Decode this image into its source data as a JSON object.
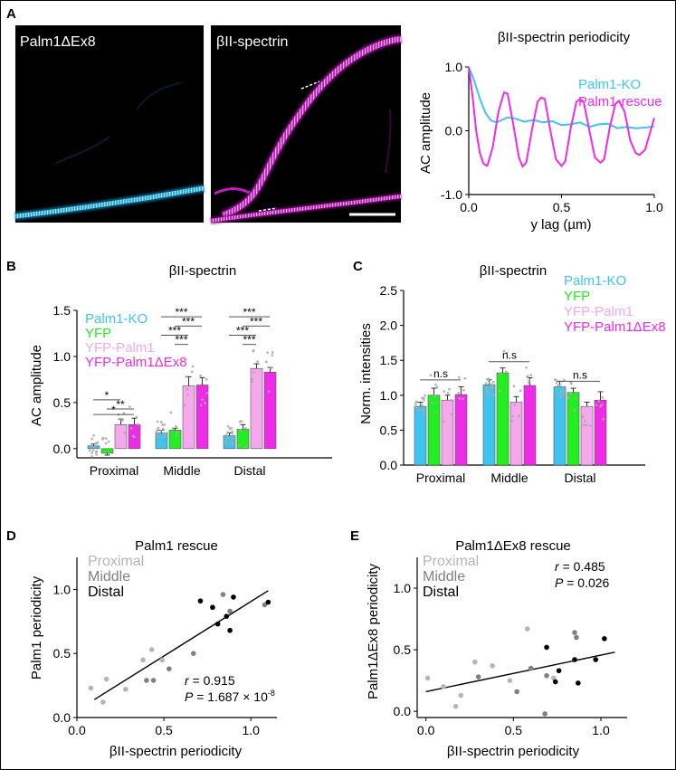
{
  "panels": {
    "A": {
      "letter": "A",
      "img_left_label": "Palm1ΔEx8",
      "img_right_label": "βII-spectrin",
      "colors": {
        "cyan": "#3ec4ee",
        "magenta": "#ee2ce8"
      }
    },
    "B": {
      "letter": "B"
    },
    "C": {
      "letter": "C"
    },
    "D": {
      "letter": "D"
    },
    "E": {
      "letter": "E"
    }
  },
  "chart_data": [
    {
      "id": "A",
      "type": "line",
      "title": "βII-spectrin periodicity",
      "xlabel": "y lag (µm)",
      "ylabel": "AC amplitude",
      "xlim": [
        0,
        1.0
      ],
      "ylim": [
        -1.0,
        1.0
      ],
      "xticks": [
        "0.0",
        "0.5",
        "1.0"
      ],
      "yticks": [
        "1.0",
        "0.0",
        "-1.0"
      ],
      "legend_position": "top-right",
      "series": [
        {
          "name": "Palm1-KO",
          "color": "#3ec4ee",
          "x": [
            0,
            0.03,
            0.06,
            0.09,
            0.12,
            0.15,
            0.18,
            0.21,
            0.25,
            0.3,
            0.35,
            0.4,
            0.45,
            0.5,
            0.55,
            0.6,
            0.65,
            0.7,
            0.75,
            0.8,
            0.85,
            0.9,
            0.95,
            1.0
          ],
          "y": [
            1.0,
            0.78,
            0.5,
            0.28,
            0.16,
            0.13,
            0.17,
            0.21,
            0.19,
            0.14,
            0.17,
            0.13,
            0.15,
            0.09,
            0.1,
            0.13,
            0.06,
            0.1,
            0.11,
            0.04,
            0.06,
            0.04,
            0.05,
            0.07
          ]
        },
        {
          "name": "Palm1-rescue",
          "color": "#ee2ce8",
          "x": [
            0,
            0.02,
            0.04,
            0.06,
            0.08,
            0.1,
            0.13,
            0.16,
            0.19,
            0.21,
            0.24,
            0.27,
            0.29,
            0.31,
            0.34,
            0.37,
            0.39,
            0.41,
            0.44,
            0.47,
            0.5,
            0.52,
            0.55,
            0.58,
            0.6,
            0.62,
            0.65,
            0.68,
            0.71,
            0.73,
            0.76,
            0.79,
            0.81,
            0.84,
            0.87,
            0.9,
            0.92,
            0.95,
            0.98,
            1.0
          ],
          "y": [
            1.0,
            0.55,
            0.0,
            -0.35,
            -0.52,
            -0.55,
            -0.25,
            0.3,
            0.6,
            0.58,
            0.1,
            -0.42,
            -0.56,
            -0.5,
            0.0,
            0.45,
            0.52,
            0.5,
            0.0,
            -0.45,
            -0.55,
            -0.48,
            0.05,
            0.45,
            0.5,
            0.45,
            0.0,
            -0.42,
            -0.5,
            -0.45,
            0.05,
            0.42,
            0.47,
            0.3,
            -0.15,
            -0.35,
            -0.38,
            -0.3,
            0.0,
            0.2
          ]
        }
      ]
    },
    {
      "id": "B",
      "type": "bar",
      "title": "βII-spectrin",
      "ylabel": "AC amplitude",
      "xlabel": "",
      "ylim": [
        -0.1,
        1.5
      ],
      "yticks": [
        "0.0",
        "0.5",
        "1.0",
        "1.5"
      ],
      "categories": [
        "Proximal",
        "Middle",
        "Distal"
      ],
      "legend_position": "top-left",
      "series": [
        {
          "name": "Palm1-KO",
          "color": "#3ec4ee",
          "values": [
            0.03,
            0.17,
            0.14
          ],
          "err": [
            0.02,
            0.03,
            0.03
          ]
        },
        {
          "name": "YFP",
          "color": "#22ee22",
          "values": [
            -0.05,
            0.2,
            0.21
          ],
          "err": [
            0.02,
            0.02,
            0.05
          ]
        },
        {
          "name": "YFP-Palm1",
          "color": "#f5a8ec",
          "values": [
            0.26,
            0.68,
            0.87
          ],
          "err": [
            0.06,
            0.1,
            0.05
          ]
        },
        {
          "name": "YFP-Palm1ΔEx8",
          "color": "#ee2ce8",
          "values": [
            0.26,
            0.69,
            0.83
          ],
          "err": [
            0.07,
            0.08,
            0.05
          ]
        }
      ],
      "significance": [
        {
          "group": "Proximal",
          "labels": [
            "*",
            "**",
            "*"
          ]
        },
        {
          "group": "Middle",
          "labels": [
            "***",
            "***",
            "***",
            "***"
          ]
        },
        {
          "group": "Distal",
          "labels": [
            "***",
            "***",
            "***",
            "***"
          ]
        }
      ]
    },
    {
      "id": "C",
      "type": "bar",
      "title": "βII-spectrin",
      "ylabel": "Norm. intensities",
      "xlabel": "",
      "ylim": [
        0.0,
        2.5
      ],
      "yticks": [
        "0.0",
        "0.5",
        "1.0",
        "1.5",
        "2.0",
        "2.5"
      ],
      "categories": [
        "Proximal",
        "Middle",
        "Distal"
      ],
      "legend_position": "top-right",
      "series": [
        {
          "name": "Palm1-KO",
          "color": "#3ec4ee",
          "values": [
            0.84,
            1.15,
            1.12
          ],
          "err": [
            0.06,
            0.07,
            0.08
          ]
        },
        {
          "name": "YFP",
          "color": "#22ee22",
          "values": [
            1.0,
            1.32,
            1.04
          ],
          "err": [
            0.1,
            0.07,
            0.06
          ]
        },
        {
          "name": "YFP-Palm1",
          "color": "#f5a8ec",
          "values": [
            0.93,
            0.9,
            0.84
          ],
          "err": [
            0.07,
            0.08,
            0.06
          ]
        },
        {
          "name": "YFP-Palm1ΔEx8",
          "color": "#ee2ce8",
          "values": [
            1.01,
            1.14,
            0.93
          ],
          "err": [
            0.11,
            0.11,
            0.12
          ]
        }
      ],
      "significance_label": "n.s"
    },
    {
      "id": "D",
      "type": "scatter",
      "title": "Palm1 rescue",
      "xlabel": "βII-spectrin periodicity",
      "ylabel": "Palm1 periodicity",
      "xlim": [
        0.0,
        1.15
      ],
      "ylim": [
        0.0,
        1.25
      ],
      "xticks": [
        "0.0",
        "0.5",
        "1.0"
      ],
      "yticks": [
        "0.0",
        "0.5",
        "1.0"
      ],
      "legend": [
        "Proximal",
        "Middle",
        "Distal"
      ],
      "stats": {
        "r": "= 0.915",
        "P": "= 1.687 × 10",
        "P_exp": "-8"
      },
      "fit": {
        "x": [
          0.1,
          1.1
        ],
        "y": [
          0.14,
          0.99
        ]
      },
      "series": [
        {
          "name": "Proximal",
          "color": "#b5b5b5",
          "x": [
            0.08,
            0.15,
            0.17,
            0.28,
            0.38,
            0.43,
            0.49
          ],
          "y": [
            0.23,
            0.12,
            0.3,
            0.22,
            0.45,
            0.53,
            0.45
          ]
        },
        {
          "name": "Middle",
          "color": "#808080",
          "x": [
            0.4,
            0.44,
            0.53,
            0.67,
            0.84,
            0.88,
            1.08
          ],
          "y": [
            0.29,
            0.29,
            0.38,
            0.5,
            0.96,
            0.83,
            0.88
          ]
        },
        {
          "name": "Distal",
          "color": "#000000",
          "x": [
            0.71,
            0.78,
            0.81,
            0.86,
            0.88,
            0.9,
            1.1
          ],
          "y": [
            0.91,
            0.86,
            0.73,
            0.79,
            0.68,
            0.94,
            0.9
          ]
        }
      ]
    },
    {
      "id": "E",
      "type": "scatter",
      "title": "Palm1ΔEx8 rescue",
      "xlabel": "βII-spectrin periodicity",
      "ylabel": "Palm1ΔEx8 periodicity",
      "xlim": [
        -0.05,
        1.15
      ],
      "ylim": [
        -0.05,
        1.25
      ],
      "xticks": [
        "0.0",
        "0.5",
        "1.0"
      ],
      "yticks": [
        "0.0",
        "0.5",
        "1.0"
      ],
      "legend": [
        "Proximal",
        "Middle",
        "Distal"
      ],
      "stats": {
        "r": "= 0.485",
        "P": "= 0.026"
      },
      "fit": {
        "x": [
          0.0,
          1.08
        ],
        "y": [
          0.16,
          0.48
        ]
      },
      "series": [
        {
          "name": "Proximal",
          "color": "#b5b5b5",
          "x": [
            0.01,
            0.1,
            0.17,
            0.2,
            0.28,
            0.38,
            0.48,
            0.58,
            0.73
          ],
          "y": [
            0.27,
            0.2,
            0.04,
            0.13,
            0.4,
            0.37,
            0.25,
            0.67,
            0.27
          ]
        },
        {
          "name": "Middle",
          "color": "#808080",
          "x": [
            0.3,
            0.52,
            0.6,
            0.68,
            0.69,
            0.85,
            0.86
          ],
          "y": [
            0.28,
            0.16,
            0.35,
            -0.02,
            0.29,
            0.64,
            0.6
          ]
        },
        {
          "name": "Distal",
          "color": "#000000",
          "x": [
            0.69,
            0.74,
            0.76,
            0.85,
            0.87,
            0.97,
            1.02
          ],
          "y": [
            0.52,
            0.24,
            0.33,
            0.42,
            0.23,
            0.42,
            0.59
          ]
        }
      ]
    }
  ]
}
